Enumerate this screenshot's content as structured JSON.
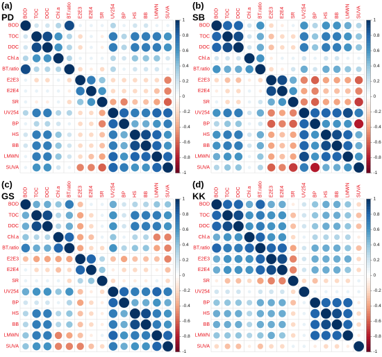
{
  "chart_data": [
    {
      "type": "correlation",
      "label": "(a)",
      "title": "PD",
      "categories": [
        "BOD",
        "TOC",
        "DOC",
        "Chl.a",
        "BT.ratio",
        "E2E3",
        "E2E4",
        "SR",
        "UV254",
        "BP",
        "HS",
        "BB",
        "LMWN",
        "SUVA"
      ],
      "clim": [
        -1,
        1
      ],
      "colorbar_ticks": [
        1,
        0.8,
        0.6,
        0.4,
        0.2,
        0,
        -0.2,
        -0.4,
        -0.6,
        -0.8,
        -1
      ],
      "matrix": [
        [
          1,
          0.2,
          0.2,
          0.3,
          0.9,
          0.1,
          0.1,
          0.1,
          0.3,
          0.1,
          0.2,
          0.2,
          0.1,
          0.1
        ],
        [
          0.2,
          1,
          0.9,
          0.6,
          0.3,
          -0.2,
          0.1,
          -0.1,
          0.7,
          0.3,
          0.7,
          0.7,
          0.7,
          0.6
        ],
        [
          0.2,
          0.9,
          1,
          0.6,
          0.3,
          -0.2,
          0.1,
          -0.1,
          0.7,
          0.3,
          0.7,
          0.7,
          0.7,
          0.6
        ],
        [
          0.3,
          0.6,
          0.6,
          1,
          0.3,
          0.1,
          0.1,
          0.1,
          0.3,
          0.2,
          0.4,
          0.4,
          0.4,
          0.2
        ],
        [
          0.9,
          0.3,
          0.3,
          0.3,
          1,
          -0.2,
          -0.1,
          -0.2,
          0.3,
          0.1,
          0.2,
          0.2,
          0.2,
          0.1
        ],
        [
          0.1,
          -0.2,
          -0.2,
          0.1,
          -0.2,
          1,
          0.7,
          0.4,
          -0.2,
          -0.2,
          -0.2,
          -0.2,
          -0.2,
          -0.5
        ],
        [
          0.1,
          0.1,
          0.1,
          0.1,
          -0.1,
          0.7,
          1,
          0.6,
          -0.2,
          -0.2,
          -0.2,
          -0.2,
          -0.3,
          -0.5
        ],
        [
          0.1,
          -0.1,
          -0.1,
          0.1,
          -0.2,
          0.4,
          0.6,
          1,
          -0.4,
          -0.5,
          -0.3,
          -0.3,
          -0.4,
          -0.6
        ],
        [
          0.3,
          0.7,
          0.7,
          0.3,
          0.3,
          -0.2,
          -0.2,
          -0.4,
          1,
          0.8,
          0.7,
          0.7,
          0.8,
          0.8
        ],
        [
          0.1,
          0.3,
          0.3,
          0.2,
          0.1,
          -0.2,
          -0.2,
          -0.5,
          0.8,
          1,
          0.5,
          0.5,
          0.6,
          0.7
        ],
        [
          0.2,
          0.7,
          0.7,
          0.4,
          0.2,
          -0.2,
          -0.2,
          -0.3,
          0.7,
          0.5,
          1,
          0.9,
          0.8,
          0.6
        ],
        [
          0.2,
          0.7,
          0.7,
          0.4,
          0.2,
          -0.2,
          -0.2,
          -0.3,
          0.7,
          0.5,
          0.9,
          1,
          0.8,
          0.6
        ],
        [
          0.1,
          0.7,
          0.7,
          0.4,
          0.2,
          -0.2,
          -0.3,
          -0.4,
          0.8,
          0.6,
          0.8,
          0.8,
          1,
          0.8
        ],
        [
          0.1,
          0.6,
          0.6,
          0.2,
          0.1,
          -0.5,
          -0.5,
          -0.6,
          0.8,
          0.7,
          0.6,
          0.6,
          0.8,
          1
        ]
      ]
    },
    {
      "type": "correlation",
      "label": "(b)",
      "title": "SB",
      "categories": [
        "BOD",
        "TOC",
        "DOC",
        "Chl.a",
        "BT.ratio",
        "E2E3",
        "E2E4",
        "SR",
        "UV254",
        "BP",
        "HS",
        "BB",
        "LMWN",
        "SUVA"
      ],
      "clim": [
        -1,
        1
      ],
      "colorbar_ticks": [
        1,
        0.8,
        0.6,
        0.4,
        0.2,
        0,
        -0.2,
        -0.4,
        -0.6,
        -0.8,
        -1
      ],
      "matrix": [
        [
          1,
          0.8,
          0.8,
          0.2,
          0.6,
          -0.2,
          -0.1,
          0.1,
          0.6,
          0.3,
          0.6,
          0.6,
          0.5,
          0.3
        ],
        [
          0.8,
          1,
          0.9,
          0.2,
          0.5,
          -0.3,
          -0.2,
          -0.2,
          0.7,
          0.4,
          0.7,
          0.7,
          0.6,
          0.4
        ],
        [
          0.8,
          0.9,
          1,
          0.2,
          0.5,
          -0.3,
          -0.2,
          -0.2,
          0.7,
          0.4,
          0.7,
          0.7,
          0.6,
          0.4
        ],
        [
          0.2,
          0.2,
          0.2,
          1,
          0.6,
          -0.1,
          0.1,
          0.1,
          0.2,
          0.1,
          0.2,
          0.2,
          0.1,
          0.1
        ],
        [
          0.6,
          0.5,
          0.5,
          0.6,
          1,
          -0.2,
          -0.1,
          0.2,
          0.5,
          0.2,
          0.5,
          0.5,
          0.4,
          0.3
        ],
        [
          -0.2,
          -0.3,
          -0.3,
          -0.1,
          -0.2,
          1,
          0.9,
          0.5,
          -0.5,
          -0.6,
          -0.4,
          -0.4,
          -0.4,
          -0.6
        ],
        [
          -0.1,
          -0.2,
          -0.2,
          0.1,
          -0.1,
          0.9,
          1,
          0.6,
          -0.4,
          -0.5,
          -0.3,
          -0.3,
          -0.3,
          -0.5
        ],
        [
          0.1,
          -0.2,
          -0.2,
          0.1,
          0.2,
          0.5,
          0.6,
          1,
          -0.5,
          -0.6,
          -0.4,
          -0.4,
          -0.4,
          -0.7
        ],
        [
          0.6,
          0.7,
          0.7,
          0.2,
          0.5,
          -0.5,
          -0.4,
          -0.5,
          1,
          0.8,
          0.8,
          0.8,
          0.9,
          0.7
        ],
        [
          0.3,
          0.4,
          0.4,
          0.1,
          0.2,
          -0.6,
          -0.5,
          -0.6,
          0.8,
          1,
          0.6,
          0.6,
          0.6,
          -0.8
        ],
        [
          0.6,
          0.7,
          0.7,
          0.2,
          0.5,
          -0.4,
          -0.3,
          -0.4,
          0.8,
          0.6,
          1,
          0.9,
          0.8,
          0.5
        ],
        [
          0.6,
          0.7,
          0.7,
          0.2,
          0.5,
          -0.4,
          -0.3,
          -0.4,
          0.8,
          0.6,
          0.9,
          1,
          0.8,
          0.5
        ],
        [
          0.5,
          0.6,
          0.6,
          0.1,
          0.4,
          -0.4,
          -0.3,
          -0.4,
          0.9,
          0.6,
          0.8,
          0.8,
          1,
          0.6
        ],
        [
          0.3,
          0.4,
          0.4,
          0.1,
          0.3,
          -0.6,
          -0.5,
          -0.7,
          0.7,
          -0.8,
          0.5,
          0.5,
          0.6,
          1
        ]
      ]
    },
    {
      "type": "correlation",
      "label": "(c)",
      "title": "GS",
      "categories": [
        "BOD",
        "TOC",
        "DOC",
        "Chl.a",
        "BT.ratio",
        "E2E3",
        "E2E4",
        "SR",
        "UV254",
        "BP",
        "HS",
        "BB",
        "LMWN",
        "SUVA"
      ],
      "clim": [
        -1,
        1
      ],
      "colorbar_ticks": [
        1,
        0.8,
        0.6,
        0.4,
        0.2,
        0,
        -0.2,
        -0.4,
        -0.6,
        -0.8,
        -1
      ],
      "matrix": [
        [
          1,
          0.5,
          0.5,
          0.4,
          0.7,
          -0.3,
          0.1,
          0.1,
          0.5,
          0.2,
          0.3,
          0.3,
          0.4,
          0.4
        ],
        [
          0.5,
          1,
          0.9,
          0.3,
          0.5,
          -0.4,
          -0.2,
          0.1,
          0.6,
          0.2,
          0.7,
          0.7,
          0.7,
          0.6
        ],
        [
          0.5,
          0.9,
          1,
          0.3,
          0.5,
          -0.4,
          -0.2,
          0.1,
          0.6,
          0.2,
          0.7,
          0.7,
          0.7,
          0.6
        ],
        [
          0.4,
          0.3,
          0.3,
          1,
          0.8,
          -0.4,
          -0.3,
          0.1,
          0.4,
          0.1,
          0.3,
          0.3,
          -0.5,
          -0.5
        ],
        [
          0.7,
          0.5,
          0.5,
          0.8,
          1,
          -0.4,
          -0.2,
          -0.2,
          0.6,
          0.3,
          0.4,
          0.4,
          -0.4,
          -0.5
        ],
        [
          -0.3,
          -0.4,
          -0.4,
          -0.4,
          -0.4,
          1,
          0.8,
          0.3,
          -0.3,
          -0.4,
          -0.3,
          -0.3,
          -0.3,
          -0.5
        ],
        [
          0.1,
          -0.2,
          -0.2,
          -0.3,
          -0.2,
          0.8,
          1,
          0.4,
          -0.1,
          -0.2,
          -0.2,
          -0.2,
          -0.1,
          -0.3
        ],
        [
          0.1,
          0.1,
          0.1,
          0.1,
          -0.2,
          0.3,
          0.4,
          1,
          -0.2,
          -0.1,
          -0.1,
          -0.1,
          0.1,
          -0.2
        ],
        [
          0.5,
          0.6,
          0.6,
          0.4,
          0.6,
          -0.3,
          -0.1,
          -0.2,
          1,
          0.8,
          0.7,
          0.7,
          0.8,
          0.7
        ],
        [
          0.2,
          0.2,
          0.2,
          0.1,
          0.3,
          -0.4,
          -0.2,
          -0.1,
          0.8,
          1,
          0.5,
          0.5,
          0.6,
          0.5
        ],
        [
          0.3,
          0.7,
          0.7,
          0.3,
          0.4,
          -0.3,
          -0.2,
          -0.1,
          0.7,
          0.5,
          1,
          0.9,
          0.7,
          0.6
        ],
        [
          0.3,
          0.7,
          0.7,
          0.3,
          0.4,
          -0.3,
          -0.2,
          -0.1,
          0.7,
          0.5,
          0.9,
          1,
          0.7,
          0.6
        ],
        [
          0.4,
          0.7,
          0.7,
          -0.5,
          -0.4,
          -0.3,
          -0.1,
          0.1,
          0.8,
          0.6,
          0.7,
          0.7,
          1,
          0.8
        ],
        [
          0.4,
          0.6,
          0.6,
          -0.5,
          -0.5,
          -0.5,
          -0.3,
          -0.2,
          0.7,
          0.5,
          0.6,
          0.6,
          0.8,
          1
        ]
      ]
    },
    {
      "type": "correlation",
      "label": "(d)",
      "title": "KK",
      "categories": [
        "BOD",
        "TOC",
        "DOC",
        "Chl.a",
        "BT.ratio",
        "E2E3",
        "E2E4",
        "SR",
        "UV254",
        "BP",
        "HS",
        "BB",
        "LMWN",
        "SUVA"
      ],
      "clim": [
        -1,
        1
      ],
      "colorbar_ticks": [
        1,
        0.8,
        0.6,
        0.4,
        0.2,
        0,
        -0.2,
        -0.4,
        -0.6,
        -0.8,
        -1
      ],
      "matrix": [
        [
          1,
          0.8,
          0.8,
          0.5,
          0.8,
          0.5,
          0.5,
          -0.1,
          0.2,
          0.4,
          0.5,
          0.5,
          0.4,
          -0.2
        ],
        [
          0.8,
          1,
          0.9,
          0.6,
          0.7,
          0.6,
          0.6,
          -0.3,
          0.2,
          0.4,
          0.5,
          0.5,
          0.4,
          -0.3
        ],
        [
          0.8,
          0.9,
          1,
          0.6,
          0.7,
          0.6,
          0.6,
          -0.3,
          0.2,
          0.4,
          0.5,
          0.5,
          0.4,
          -0.3
        ],
        [
          0.5,
          0.6,
          0.6,
          1,
          0.8,
          0.6,
          0.6,
          -0.2,
          0.1,
          0.3,
          0.3,
          0.3,
          0.3,
          -0.1
        ],
        [
          0.8,
          0.7,
          0.7,
          0.8,
          1,
          0.8,
          0.8,
          -0.4,
          0.2,
          0.5,
          0.5,
          0.5,
          0.4,
          -0.3
        ],
        [
          0.5,
          0.6,
          0.6,
          0.6,
          0.8,
          1,
          0.9,
          -0.5,
          0.2,
          0.5,
          0.5,
          0.5,
          0.5,
          -0.2
        ],
        [
          0.5,
          0.6,
          0.6,
          0.6,
          0.8,
          0.9,
          1,
          -0.5,
          0.2,
          0.5,
          0.5,
          0.5,
          0.4,
          -0.2
        ],
        [
          -0.1,
          -0.3,
          -0.3,
          -0.2,
          -0.4,
          -0.5,
          -0.5,
          1,
          -0.2,
          -0.3,
          -0.2,
          -0.2,
          -0.2,
          0.1
        ],
        [
          0.2,
          0.2,
          0.2,
          0.1,
          0.2,
          0.2,
          0.2,
          -0.2,
          1,
          0.1,
          0.1,
          0.1,
          0.1,
          0.1
        ],
        [
          0.4,
          0.4,
          0.4,
          0.3,
          0.5,
          0.5,
          0.5,
          -0.3,
          0.1,
          1,
          0.8,
          0.8,
          0.8,
          -0.1
        ],
        [
          0.5,
          0.5,
          0.5,
          0.3,
          0.5,
          0.5,
          0.5,
          -0.2,
          0.1,
          0.8,
          1,
          0.9,
          0.8,
          -0.2
        ],
        [
          0.5,
          0.5,
          0.5,
          0.3,
          0.5,
          0.5,
          0.5,
          -0.2,
          0.1,
          0.8,
          0.9,
          1,
          0.8,
          -0.2
        ],
        [
          0.4,
          0.4,
          0.4,
          0.3,
          0.4,
          0.5,
          0.4,
          -0.2,
          0.1,
          0.8,
          0.8,
          0.8,
          1,
          -0.1
        ],
        [
          -0.2,
          -0.3,
          -0.3,
          -0.1,
          -0.3,
          -0.2,
          -0.2,
          0.1,
          0.1,
          -0.1,
          -0.2,
          -0.2,
          -0.1,
          1
        ]
      ]
    }
  ]
}
